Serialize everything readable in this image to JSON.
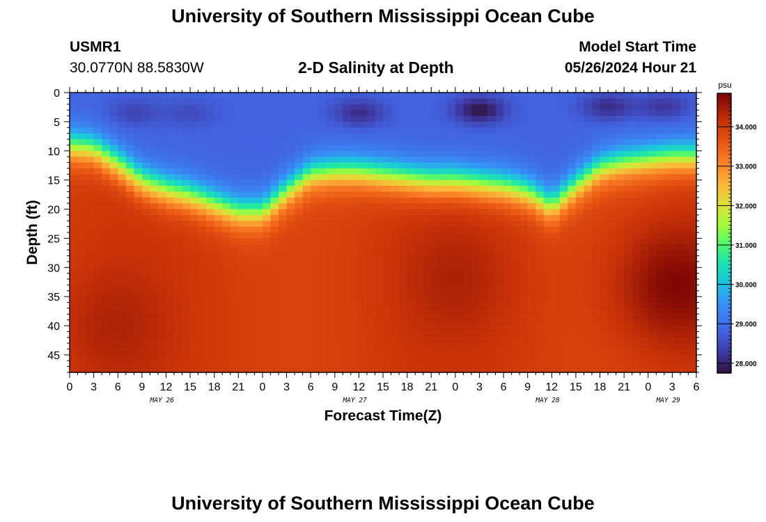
{
  "page": {
    "title_top": "University of Southern Mississippi Ocean Cube",
    "title_bottom": "University of Southern Mississippi Ocean Cube",
    "station_id": "USMR1",
    "station_coords": "30.0770N  88.5830W",
    "plot_title": "2-D Salinity at Depth",
    "model_start_label": "Model Start Time",
    "model_start_value": "05/26/2024 Hour 21"
  },
  "chart_data": {
    "type": "heatmap",
    "title": "2-D Salinity at Depth",
    "xlabel": "Forecast Time(Z)",
    "ylabel": "Depth (ft)",
    "x_hours_range": [
      0,
      78
    ],
    "x_tick_labels": [
      "0",
      "3",
      "6",
      "9",
      "12",
      "15",
      "18",
      "21",
      "0",
      "3",
      "6",
      "9",
      "12",
      "15",
      "18",
      "21",
      "0",
      "3",
      "6",
      "9",
      "12",
      "15",
      "18",
      "21",
      "0",
      "3",
      "6"
    ],
    "date_labels": [
      {
        "label": "MAY 26",
        "hour": 11.5
      },
      {
        "label": "MAY 27",
        "hour": 35.5
      },
      {
        "label": "MAY 28",
        "hour": 59.5
      },
      {
        "label": "MAY 29",
        "hour": 74.5
      }
    ],
    "y_ticks": [
      0,
      5,
      10,
      15,
      20,
      25,
      30,
      35,
      40,
      45
    ],
    "y_range": [
      0,
      48
    ],
    "colorbar": {
      "unit": "psu",
      "tick_values": [
        28,
        29,
        30,
        31,
        32,
        33,
        34
      ],
      "tick_labels": [
        "28.000",
        "29.000",
        "30.000",
        "31.000",
        "32.000",
        "33.000",
        "34.000"
      ],
      "range": [
        27.75,
        34.85
      ]
    },
    "halocline_depth_by_hour": {
      "hours": [
        0,
        3,
        6,
        9,
        12,
        15,
        18,
        21,
        24,
        27,
        30,
        33,
        36,
        39,
        42,
        45,
        48,
        51,
        54,
        57,
        60,
        63,
        66,
        69,
        72,
        75,
        78
      ],
      "depth_ft": [
        9,
        9.5,
        12,
        15,
        16.5,
        17.5,
        19,
        20.5,
        20.5,
        17,
        14,
        13.5,
        13.5,
        14,
        14.5,
        15,
        15,
        15.5,
        16,
        17,
        19.5,
        16,
        13,
        12,
        11.5,
        11,
        11
      ]
    },
    "surface_salinity_psu": 28.8,
    "deep_salinity_psu": 34.0,
    "fresh_pockets": [
      {
        "hour": 8,
        "depth_ft": 3.5,
        "psu": 28.4
      },
      {
        "hour": 15,
        "depth_ft": 3.5,
        "psu": 28.5
      },
      {
        "hour": 36,
        "depth_ft": 3.5,
        "psu": 28.1
      },
      {
        "hour": 51,
        "depth_ft": 3,
        "psu": 27.8
      },
      {
        "hour": 67,
        "depth_ft": 2.5,
        "psu": 28.1
      },
      {
        "hour": 74,
        "depth_ft": 2.5,
        "psu": 28.2
      }
    ],
    "salty_cores": [
      {
        "hour": 5,
        "depth_ft": 40,
        "psu": 34.3
      },
      {
        "hour": 48,
        "depth_ft": 32,
        "psu": 34.3
      },
      {
        "hour": 75,
        "depth_ft": 33,
        "psu": 34.8
      }
    ]
  }
}
